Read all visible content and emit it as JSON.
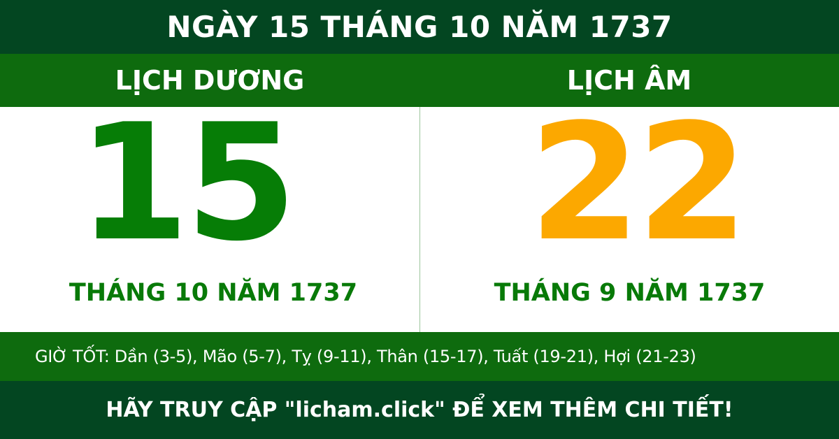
{
  "header": {
    "title": "NGÀY 15 THÁNG 10 NĂM 1737"
  },
  "solar": {
    "label": "LỊCH DƯƠNG",
    "day": "15",
    "month_year": "THÁNG 10 NĂM 1737"
  },
  "lunar": {
    "label": "LỊCH ÂM",
    "day": "22",
    "month_year": "THÁNG 9 NĂM 1737"
  },
  "good_hours": "GIỜ TỐT: Dần (3-5), Mão (5-7), Tỵ (9-11), Thân (15-17), Tuất (19-21), Hợi (21-23)",
  "footer": {
    "cta": "HÃY TRUY CẬP \"licham.click\" ĐỂ XEM THÊM CHI TIẾT!"
  },
  "colors": {
    "dark_green": "#034621",
    "green": "#0e6b0e",
    "solar_day": "#067d06",
    "lunar_day": "#fca800"
  }
}
